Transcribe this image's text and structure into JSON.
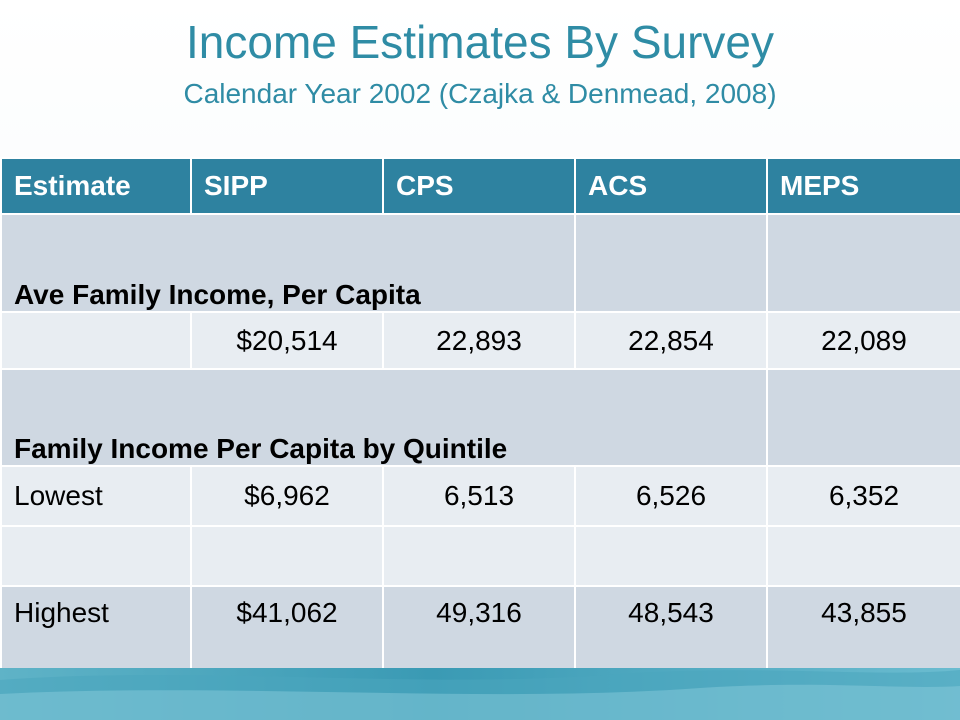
{
  "slide": {
    "title": "Income Estimates By Survey",
    "subtitle": "Calendar Year 2002 (Czajka & Denmead, 2008)"
  },
  "table": {
    "headers": [
      "Estimate",
      "SIPP",
      "CPS",
      "ACS",
      "MEPS"
    ],
    "section1_label": "Ave Family Income, Per Capita",
    "row_avg": [
      "",
      "$20,514",
      "22,893",
      "22,854",
      "22,089"
    ],
    "section2_label": "Family Income Per Capita by Quintile",
    "row_lowest": [
      "Lowest",
      "$6,962",
      "6,513",
      "6,526",
      "6,352"
    ],
    "row_highest": [
      "Highest",
      "$41,062",
      "49,316",
      "48,543",
      "43,855"
    ]
  },
  "colors": {
    "title": "#2f8ca5",
    "header_bg": "#2e82a0",
    "band_dark": "#cfd8e2",
    "band_light": "#e8edf2",
    "bottom_bar": "#3a9ab4"
  }
}
